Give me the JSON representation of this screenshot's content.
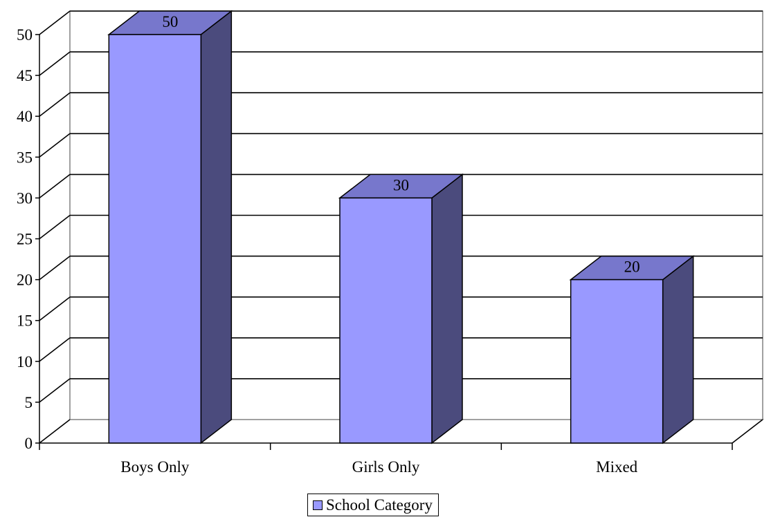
{
  "chart_data": {
    "type": "bar",
    "categories": [
      "Boys Only",
      "Girls Only",
      "Mixed"
    ],
    "series": [
      {
        "name": "School Category",
        "values": [
          50,
          30,
          20
        ]
      }
    ],
    "data_labels": [
      "50",
      "30",
      "20"
    ],
    "ylim": [
      0,
      50
    ],
    "yticks": [
      0,
      5,
      10,
      15,
      20,
      25,
      30,
      35,
      40,
      45,
      50
    ],
    "grid": true,
    "three_d": true,
    "legend_position": "bottom",
    "colors": {
      "bar_front": "#9999ff",
      "bar_top": "#7777cc",
      "bar_side": "#4b4b7d",
      "gridline": "#000000",
      "wall": "#808080"
    }
  }
}
